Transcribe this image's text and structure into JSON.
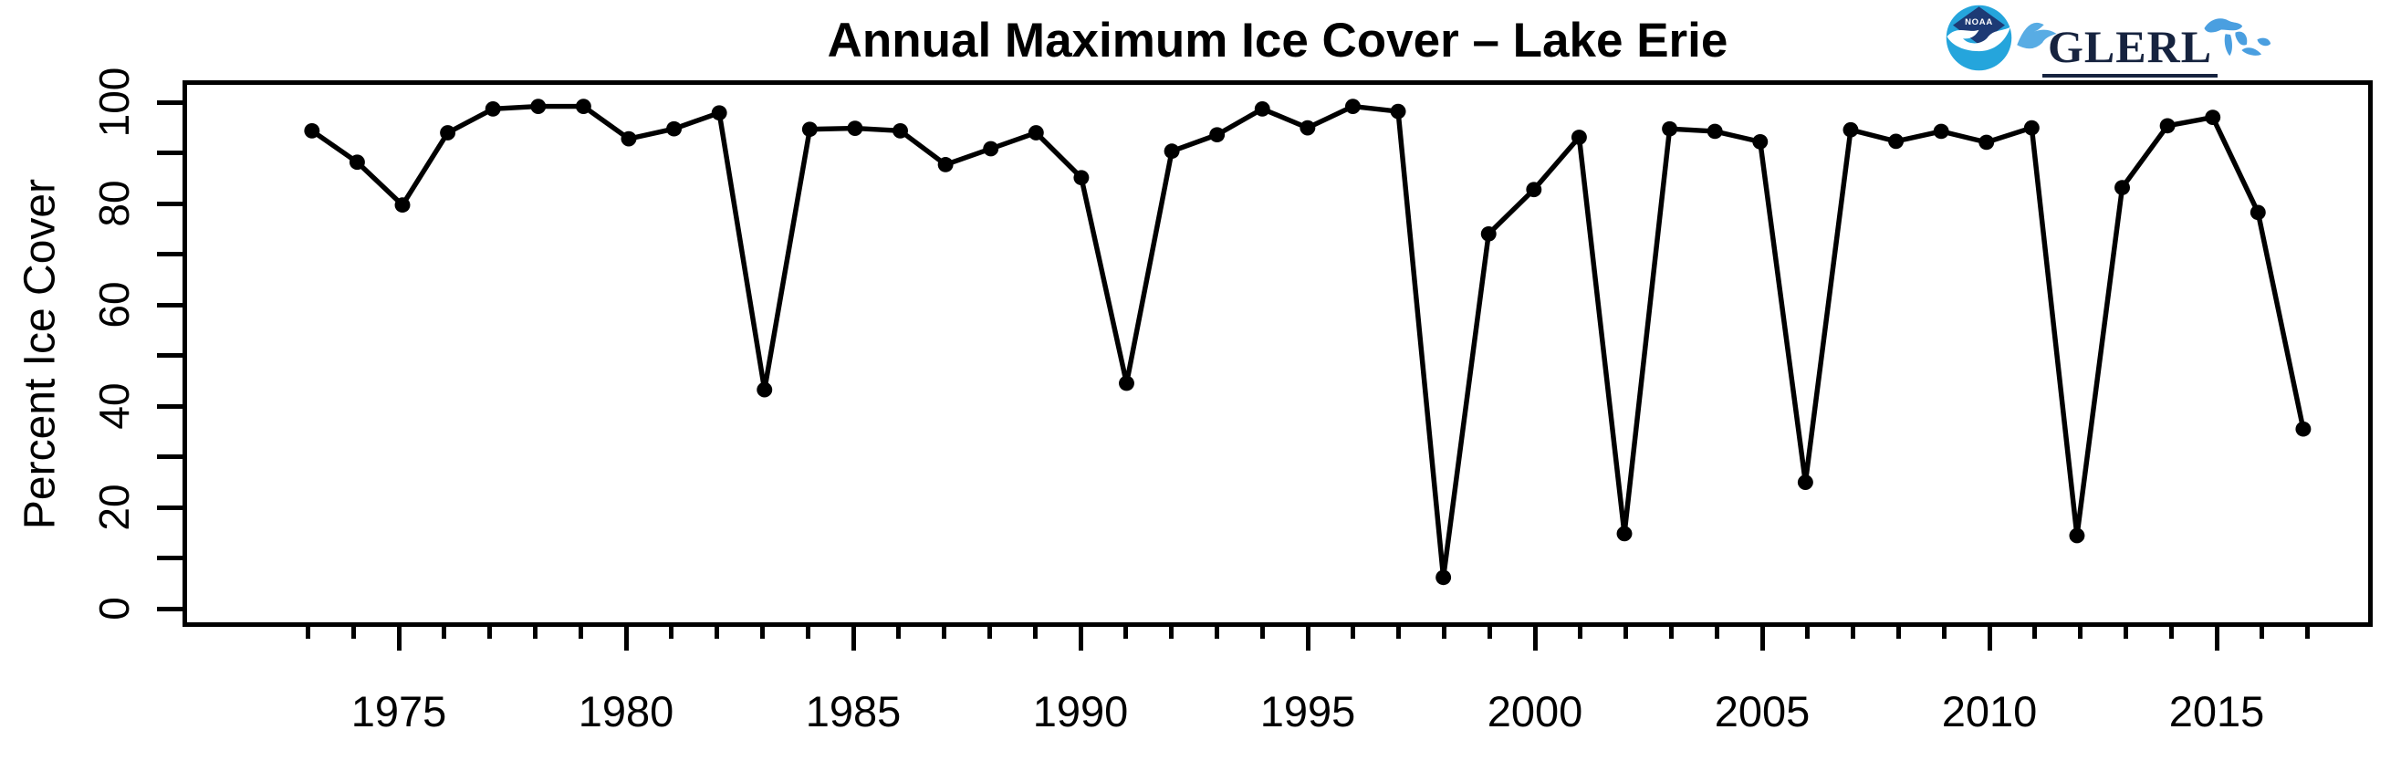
{
  "title": "Annual Maximum Ice Cover – Lake Erie",
  "logos": {
    "noaa_emblem_text": "NOAA",
    "glerl_text": "GLERL"
  },
  "colors": {
    "line": "#000000",
    "axis": "#000000",
    "noaa_dark_blue": "#1d3a75",
    "noaa_light_blue": "#25a5dc",
    "glerl_navy": "#16233f",
    "gull_blue": "#58ace4",
    "lakes_blue": "#4a9fe0"
  },
  "chart_data": {
    "type": "line",
    "title": "Annual Maximum Ice Cover – Lake Erie",
    "xlabel": "",
    "ylabel": "Percent Ice Cover",
    "marker": "filled-circle",
    "grid": false,
    "legend": null,
    "x_range": [
      1973,
      2017
    ],
    "ylim": [
      0,
      100
    ],
    "xticks": [
      1975,
      1980,
      1985,
      1990,
      1995,
      2000,
      2005,
      2010,
      2015
    ],
    "xticks_minor_step": 1,
    "yticks": [
      0,
      20,
      40,
      60,
      80,
      100
    ],
    "yticks_minor_step": 10,
    "x": [
      1973,
      1974,
      1975,
      1976,
      1977,
      1978,
      1979,
      1980,
      1981,
      1982,
      1983,
      1984,
      1985,
      1986,
      1987,
      1988,
      1989,
      1990,
      1991,
      1992,
      1993,
      1994,
      1995,
      1996,
      1997,
      1998,
      1999,
      2000,
      2001,
      2002,
      2003,
      2004,
      2005,
      2006,
      2007,
      2008,
      2009,
      2010,
      2011,
      2012,
      2013,
      2014,
      2015,
      2016,
      2017
    ],
    "values": [
      95.1,
      88.8,
      80.2,
      94.7,
      99.5,
      100,
      100,
      93.5,
      95.5,
      98.7,
      43.1,
      95.4,
      95.6,
      95.1,
      88.3,
      91.5,
      94.7,
      85.7,
      44.4,
      91.0,
      94.3,
      99.5,
      95.7,
      100,
      99.0,
      5.4,
      74.4,
      83.3,
      93.8,
      14.2,
      95.5,
      95.0,
      92.9,
      24.5,
      95.3,
      93.0,
      95.0,
      92.8,
      95.7,
      13.8,
      83.7,
      96.1,
      97.8,
      78.7,
      35.2
    ]
  }
}
